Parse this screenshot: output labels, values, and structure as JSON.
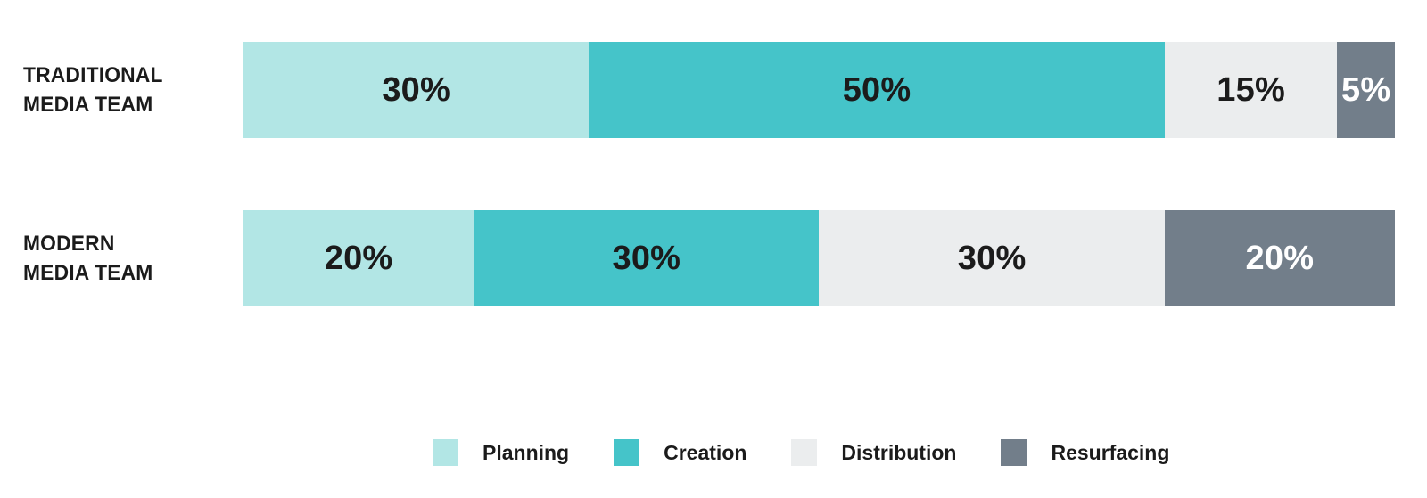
{
  "chart_data": {
    "type": "bar",
    "variant": "horizontal-stacked",
    "title": "",
    "categories": [
      "TRADITIONAL MEDIA TEAM",
      "MODERN MEDIA TEAM"
    ],
    "category_lines": [
      [
        "TRADITIONAL",
        "MEDIA TEAM"
      ],
      [
        "MODERN",
        "MEDIA TEAM"
      ]
    ],
    "series": [
      {
        "name": "Planning",
        "values": [
          30,
          20
        ],
        "color": "#b2e6e5",
        "label_color": "#1b1b1b"
      },
      {
        "name": "Creation",
        "values": [
          50,
          30
        ],
        "color": "#45c4c9",
        "label_color": "#1b1b1b"
      },
      {
        "name": "Distribution",
        "values": [
          15,
          30
        ],
        "color": "#ebedee",
        "label_color": "#1b1b1b"
      },
      {
        "name": "Resurfacing",
        "values": [
          5,
          20
        ],
        "color": "#727e8a",
        "label_color": "#ffffff"
      }
    ],
    "value_suffix": "%",
    "xlim": [
      0,
      100
    ],
    "grid": false,
    "legend_position": "bottom",
    "legend": [
      "Planning",
      "Creation",
      "Distribution",
      "Resurfacing"
    ],
    "background": "#ffffff",
    "text_color": "#1b1b1b"
  }
}
